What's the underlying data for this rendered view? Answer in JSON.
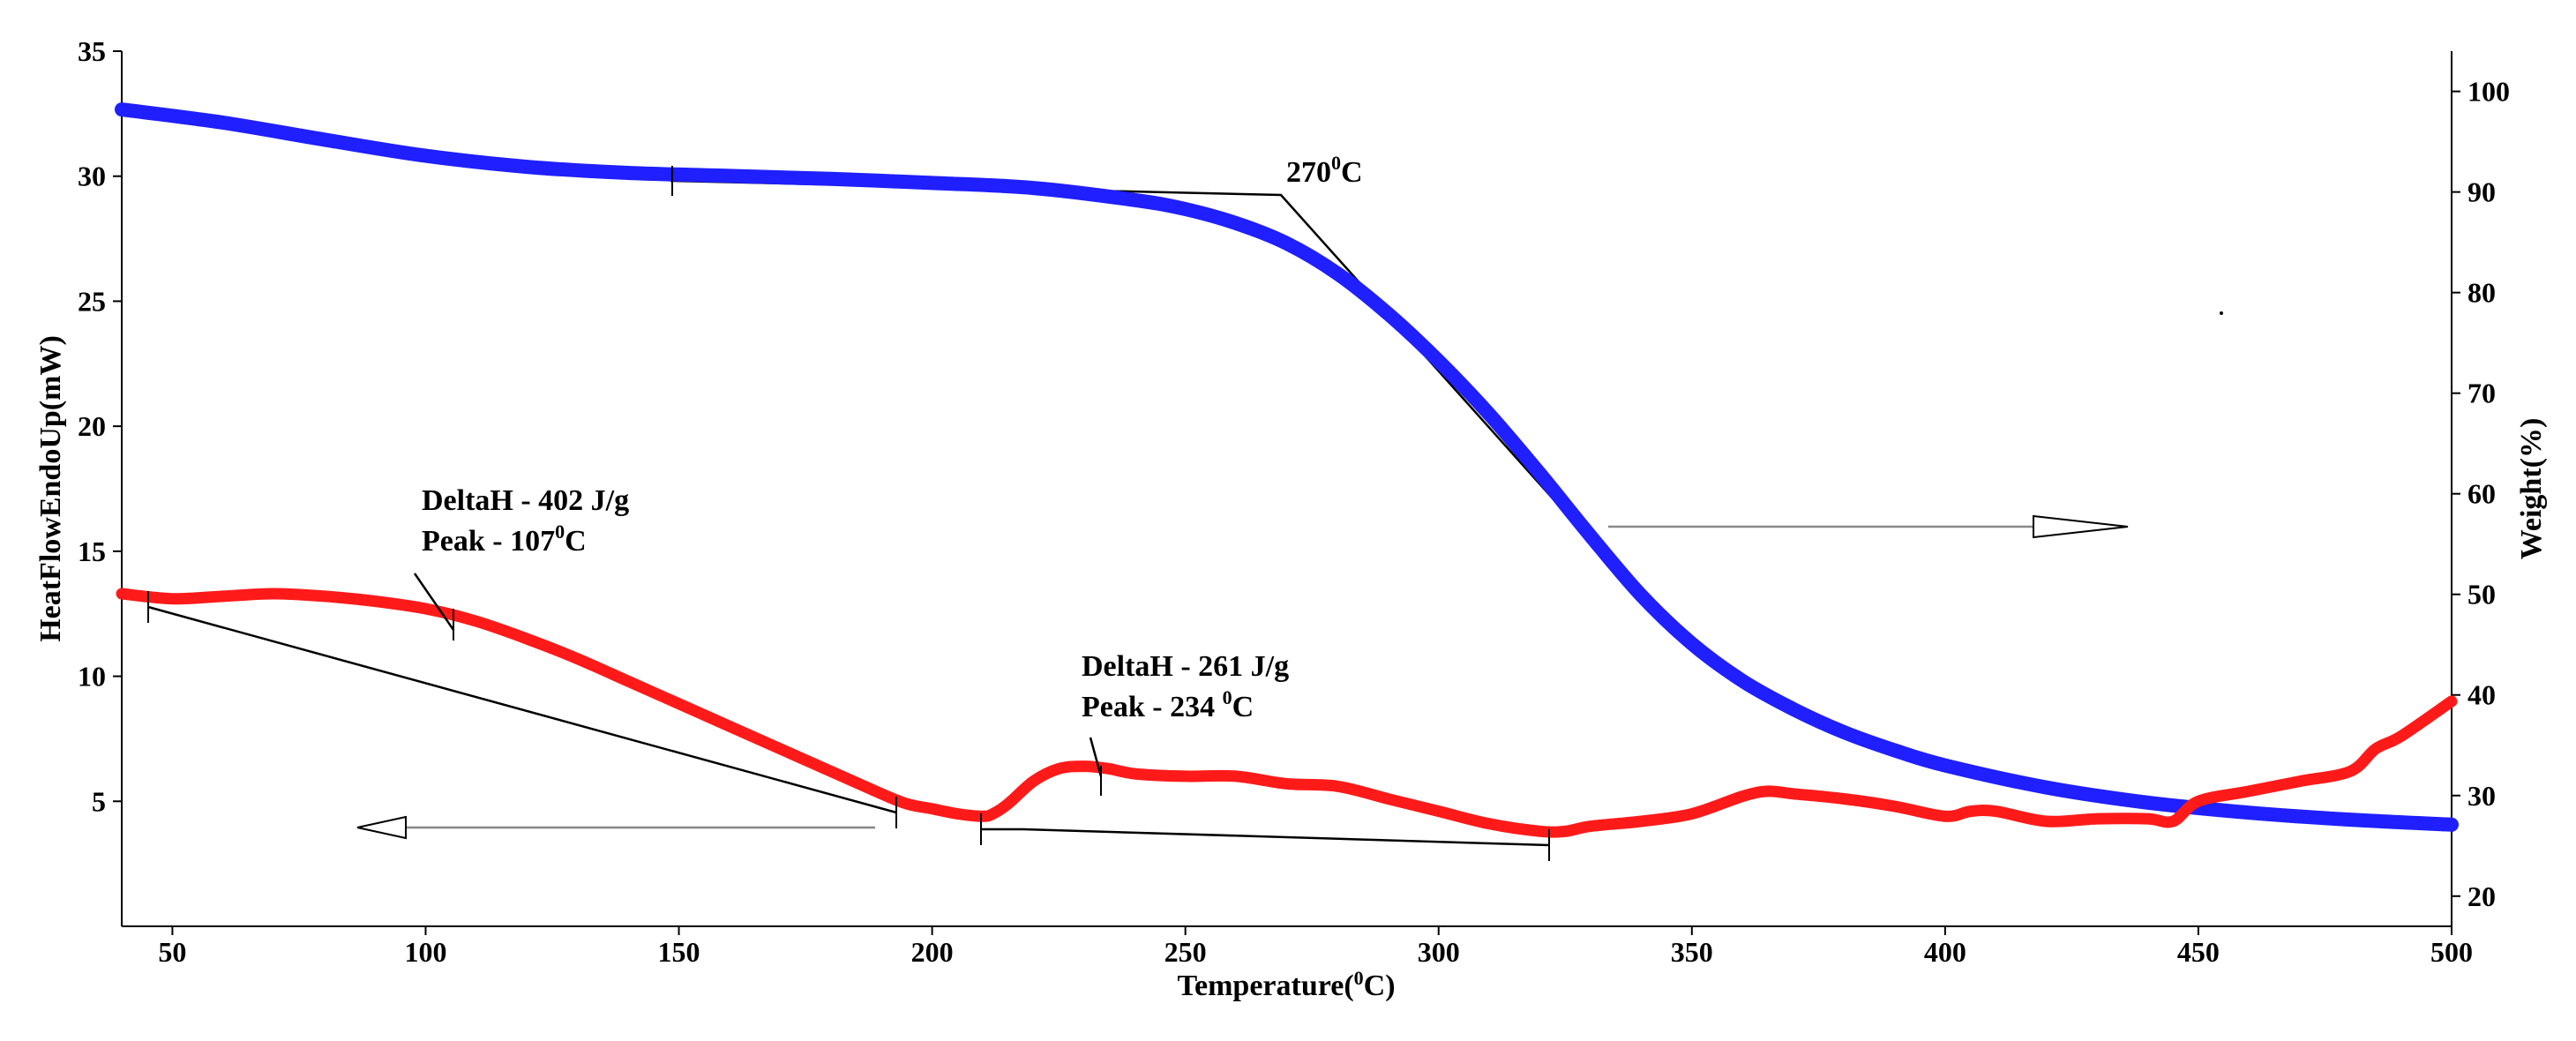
{
  "chart_data": {
    "type": "line",
    "title": "",
    "xlabel": {
      "prefix": "Temperature(",
      "sup": "0",
      "suffix": "C)"
    },
    "ylabel_left": "HeatFlowEndoUp(mW)",
    "ylabel_right": "Weight(%)",
    "xlim": [
      40,
      500
    ],
    "ylim_left": [
      0,
      35
    ],
    "ylim_right": [
      17,
      104
    ],
    "x_ticks": [
      50,
      100,
      150,
      200,
      250,
      300,
      350,
      400,
      450,
      500
    ],
    "y_left_ticks": [
      5,
      10,
      15,
      20,
      25,
      30,
      35
    ],
    "y_right_ticks": [
      20,
      30,
      40,
      50,
      60,
      70,
      80,
      90,
      100
    ],
    "series": [
      {
        "name": "Weight",
        "axis": "right",
        "color": "#1f1fff",
        "x": [
          40,
          60,
          80,
          100,
          120,
          140,
          160,
          180,
          200,
          220,
          240,
          250,
          260,
          270,
          280,
          290,
          300,
          310,
          320,
          330,
          340,
          350,
          360,
          370,
          380,
          390,
          400,
          420,
          440,
          460,
          480,
          500
        ],
        "y": [
          98.2,
          96.9,
          95.2,
          93.6,
          92.5,
          91.9,
          91.6,
          91.3,
          90.9,
          90.4,
          89.2,
          88.3,
          86.9,
          84.9,
          81.9,
          77.9,
          73.2,
          67.9,
          62.0,
          55.8,
          49.9,
          45.1,
          41.4,
          38.6,
          36.3,
          34.5,
          33.0,
          30.8,
          29.3,
          28.3,
          27.6,
          27.1
        ]
      },
      {
        "name": "Heat Flow",
        "axis": "left",
        "color": "#ff1a1a",
        "x": [
          40,
          50,
          60,
          70,
          80,
          90,
          100,
          110,
          120,
          130,
          140,
          150,
          160,
          170,
          180,
          190,
          195,
          200,
          205,
          210,
          212,
          215,
          220,
          225,
          230,
          235,
          240,
          250,
          260,
          270,
          280,
          290,
          300,
          310,
          320,
          325,
          330,
          340,
          350,
          360,
          365,
          370,
          380,
          390,
          400,
          405,
          410,
          420,
          430,
          440,
          445,
          450,
          460,
          470,
          480,
          485,
          490,
          500
        ],
        "y": [
          13.3,
          13.1,
          13.2,
          13.3,
          13.2,
          13.0,
          12.7,
          12.2,
          11.5,
          10.7,
          9.8,
          8.9,
          8.0,
          7.1,
          6.2,
          5.3,
          4.9,
          4.7,
          4.5,
          4.4,
          4.5,
          4.9,
          5.8,
          6.3,
          6.4,
          6.3,
          6.1,
          6.0,
          6.0,
          5.7,
          5.6,
          5.1,
          4.6,
          4.1,
          3.8,
          3.8,
          4.0,
          4.2,
          4.5,
          5.2,
          5.4,
          5.3,
          5.1,
          4.8,
          4.4,
          4.6,
          4.6,
          4.2,
          4.3,
          4.3,
          4.2,
          5.0,
          5.4,
          5.8,
          6.2,
          7.1,
          7.6,
          9.0
        ]
      }
    ],
    "annotations": [
      {
        "name": "onset-270",
        "text": "270",
        "sup": "0",
        "suffix": "C"
      },
      {
        "name": "peak1-deltaH",
        "text": "DeltaH - 402 J/g"
      },
      {
        "name": "peak1-peak",
        "text": "Peak - 107",
        "sup": "0",
        "suffix": "C"
      },
      {
        "name": "peak2-deltaH",
        "text": "DeltaH - 261 J/g"
      },
      {
        "name": "peak2-peak",
        "text": "Peak - 234 ",
        "sup": "0",
        "suffix": "C"
      }
    ]
  }
}
